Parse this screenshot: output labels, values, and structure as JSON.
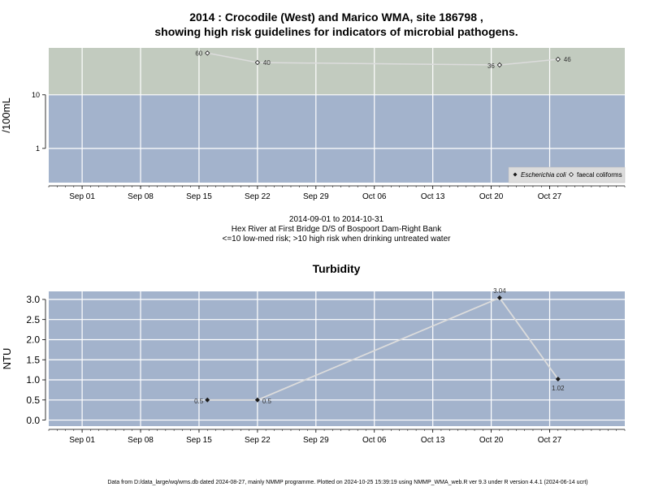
{
  "main_title_line1": "2014 : Crocodile (West) and Marico WMA, site 186798 ,",
  "main_title_line2": "showing high risk guidelines for indicators of microbial pathogens.",
  "footer": "Data from D:/data_large/wq/wms.db dated 2024-08-27, mainly NMMP programme. Plotted on 2024-10-25 15:39:19 using NMMP_WMA_web.R ver 9.3 under R version 4.4.1 (2024-06-14 ucrt)",
  "colors": {
    "low_band": "#a3b3cc",
    "high_band": "#c2cbbf",
    "grid": "#ffffff",
    "line": "#dcdcdc",
    "point": "#1a1a1a"
  },
  "chart_data": [
    {
      "type": "scatter",
      "title": "",
      "xlabel": "",
      "ylabel": "/100mL",
      "y_scale": "log",
      "ylim": [
        0.23,
        75
      ],
      "yticks": [
        1,
        10
      ],
      "ytick_labels": [
        "1",
        "10"
      ],
      "xlim": [
        "2014-08-28",
        "2014-11-05"
      ],
      "xticks": [
        "2014-09-01",
        "2014-09-08",
        "2014-09-15",
        "2014-09-22",
        "2014-09-29",
        "2014-10-06",
        "2014-10-13",
        "2014-10-20",
        "2014-10-27"
      ],
      "xtick_labels": [
        "Sep 01",
        "Sep 08",
        "Sep 15",
        "Sep 22",
        "Sep 29",
        "Oct 06",
        "Oct 13",
        "Oct 20",
        "Oct 27"
      ],
      "grid": true,
      "bands": [
        {
          "from": 0.23,
          "to": 10,
          "color": "#a3b3cc"
        },
        {
          "from": 10,
          "to": 75,
          "color": "#c2cbbf"
        }
      ],
      "series": [
        {
          "name": "Escherichia coli",
          "marker": "filled-diamond",
          "x": [],
          "y": []
        },
        {
          "name": "faecal coliforms",
          "marker": "open-diamond",
          "x": [
            "2014-09-16",
            "2014-09-22",
            "2014-10-21",
            "2014-10-28"
          ],
          "y": [
            60,
            40,
            36,
            46
          ],
          "labels": [
            "60",
            "40",
            "36",
            "46"
          ]
        }
      ],
      "legend_position": "bottom-right",
      "caption_lines": [
        "2014-09-01 to 2014-10-31",
        "Hex River at First Bridge D/S of Bospoort Dam-Right Bank",
        "<=10 low-med risk; >10 high risk when drinking untreated water"
      ]
    },
    {
      "type": "line",
      "title": "Turbidity",
      "xlabel": "",
      "ylabel": "NTU",
      "ylim": [
        -0.15,
        3.2
      ],
      "yticks": [
        0,
        0.5,
        1,
        1.5,
        2,
        2.5,
        3
      ],
      "ytick_labels": [
        "0.0",
        "0.5",
        "1.0",
        "1.5",
        "2.0",
        "2.5",
        "3.0"
      ],
      "xlim": [
        "2014-08-28",
        "2014-11-05"
      ],
      "xticks": [
        "2014-09-01",
        "2014-09-08",
        "2014-09-15",
        "2014-09-22",
        "2014-09-29",
        "2014-10-06",
        "2014-10-13",
        "2014-10-20",
        "2014-10-27"
      ],
      "xtick_labels": [
        "Sep 01",
        "Sep 08",
        "Sep 15",
        "Sep 22",
        "Sep 29",
        "Oct 06",
        "Oct 13",
        "Oct 20",
        "Oct 27"
      ],
      "grid": true,
      "series": [
        {
          "name": "",
          "marker": "filled-diamond",
          "x": [
            "2014-09-16",
            "2014-09-22",
            "2014-10-21",
            "2014-10-28"
          ],
          "y": [
            0.5,
            0.5,
            3.04,
            1.02
          ],
          "labels": [
            "0.5",
            "0.5",
            "3.04",
            "1.02"
          ]
        }
      ]
    }
  ]
}
